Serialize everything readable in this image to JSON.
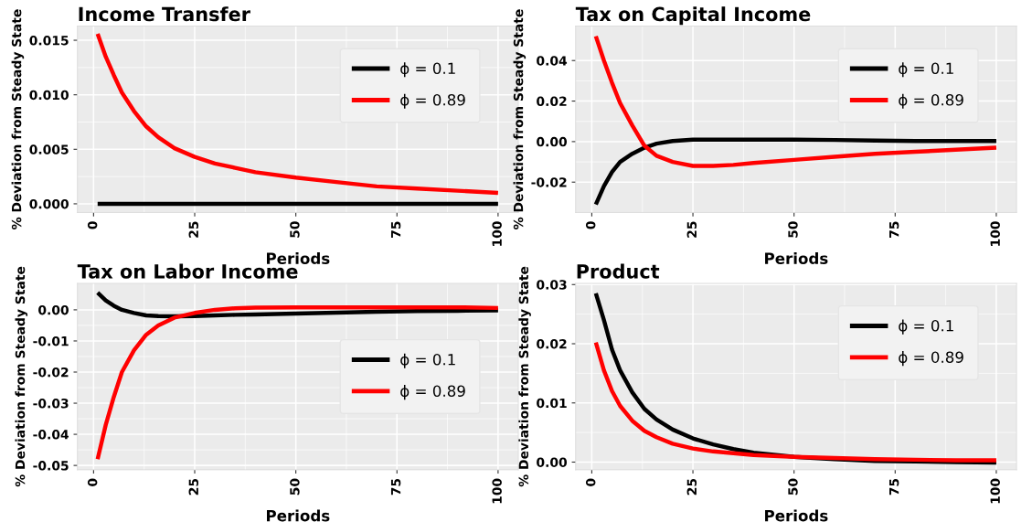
{
  "chart_data": [
    {
      "type": "line",
      "title": "Income Transfer",
      "xlabel": "Periods",
      "ylabel": "% Deviation from Steady State",
      "x": [
        1,
        3,
        5,
        7,
        10,
        13,
        16,
        20,
        25,
        30,
        35,
        40,
        50,
        60,
        70,
        80,
        90,
        100
      ],
      "xlim": [
        -4,
        105
      ],
      "xticks": [
        0,
        25,
        50,
        75,
        100
      ],
      "ylim": [
        -0.0008,
        0.0163
      ],
      "yticks": [
        {
          "value": 0,
          "label": "0.000"
        },
        {
          "value": 0.005,
          "label": "0.005"
        },
        {
          "value": 0.01,
          "label": "0.010"
        },
        {
          "value": 0.015,
          "label": "0.015"
        }
      ],
      "grid": true,
      "legend": "top right",
      "series": [
        {
          "name": "ϕ = 0.1",
          "color": "#000000",
          "values": [
            0,
            0,
            0,
            0,
            0,
            0,
            0,
            0,
            0,
            0,
            0,
            0,
            0,
            0,
            0,
            0,
            0,
            0
          ]
        },
        {
          "name": "ϕ = 0.89",
          "color": "#ff0000",
          "values": [
            0.0156,
            0.0135,
            0.0118,
            0.0102,
            0.0085,
            0.0071,
            0.0061,
            0.0051,
            0.0043,
            0.0037,
            0.0033,
            0.0029,
            0.0024,
            0.002,
            0.0016,
            0.0014,
            0.0012,
            0.001
          ]
        }
      ]
    },
    {
      "type": "line",
      "title": "Tax on Capital Income",
      "xlabel": "Periods",
      "ylabel": "% Deviation from Steady State",
      "x": [
        1,
        3,
        5,
        7,
        10,
        13,
        16,
        20,
        25,
        30,
        35,
        40,
        50,
        60,
        70,
        80,
        90,
        100
      ],
      "xlim": [
        -4,
        105
      ],
      "xticks": [
        0,
        25,
        50,
        75,
        100
      ],
      "ylim": [
        -0.035,
        0.057
      ],
      "yticks": [
        {
          "value": -0.02,
          "label": "-0.02"
        },
        {
          "value": 0,
          "label": "0.00"
        },
        {
          "value": 0.02,
          "label": "0.02"
        },
        {
          "value": 0.04,
          "label": "0.04"
        }
      ],
      "grid": true,
      "legend": "top right",
      "series": [
        {
          "name": "ϕ = 0.1",
          "color": "#000000",
          "values": [
            -0.031,
            -0.022,
            -0.015,
            -0.01,
            -0.006,
            -0.003,
            -0.001,
            0.0003,
            0.001,
            0.001,
            0.001,
            0.001,
            0.001,
            0.0008,
            0.0005,
            0.0003,
            0.0003,
            0.0003
          ]
        },
        {
          "name": "ϕ = 0.89",
          "color": "#ff0000",
          "values": [
            0.052,
            0.04,
            0.029,
            0.019,
            0.008,
            -0.002,
            -0.007,
            -0.01,
            -0.012,
            -0.012,
            -0.0115,
            -0.0105,
            -0.009,
            -0.0075,
            -0.006,
            -0.005,
            -0.004,
            -0.003
          ]
        }
      ]
    },
    {
      "type": "line",
      "title": "Tax on Labor Income",
      "xlabel": "Periods",
      "ylabel": "% Deviation from Steady State",
      "x": [
        1,
        3,
        5,
        7,
        10,
        13,
        16,
        20,
        25,
        30,
        35,
        40,
        50,
        60,
        70,
        80,
        90,
        100
      ],
      "xlim": [
        -4,
        105
      ],
      "xticks": [
        0,
        25,
        50,
        75,
        100
      ],
      "ylim": [
        -0.0514,
        0.0085
      ],
      "yticks": [
        {
          "value": -0.05,
          "label": "-0.05"
        },
        {
          "value": -0.04,
          "label": "-0.04"
        },
        {
          "value": -0.03,
          "label": "-0.03"
        },
        {
          "value": -0.02,
          "label": "-0.02"
        },
        {
          "value": -0.01,
          "label": "-0.01"
        },
        {
          "value": 0,
          "label": "0.00"
        }
      ],
      "grid": true,
      "legend": "center right",
      "series": [
        {
          "name": "ϕ = 0.1",
          "color": "#000000",
          "values": [
            0.0055,
            0.003,
            0.0013,
            0.0,
            -0.001,
            -0.0018,
            -0.002,
            -0.0021,
            -0.002,
            -0.0018,
            -0.0016,
            -0.0015,
            -0.0012,
            -0.0009,
            -0.0006,
            -0.0004,
            -0.0003,
            -0.0002
          ]
        },
        {
          "name": "ϕ = 0.89",
          "color": "#ff0000",
          "values": [
            -0.048,
            -0.037,
            -0.028,
            -0.02,
            -0.013,
            -0.008,
            -0.005,
            -0.0025,
            -0.001,
            0.0,
            0.0005,
            0.0007,
            0.0008,
            0.0008,
            0.0008,
            0.0008,
            0.0008,
            0.0006
          ]
        }
      ]
    },
    {
      "type": "line",
      "title": "Product",
      "xlabel": "Periods",
      "ylabel": "% Deviation from Steady State",
      "x": [
        1,
        3,
        5,
        7,
        10,
        13,
        16,
        20,
        25,
        30,
        35,
        40,
        50,
        60,
        70,
        80,
        90,
        100
      ],
      "xlim": [
        -4,
        105
      ],
      "xticks": [
        0,
        25,
        50,
        75,
        100
      ],
      "ylim": [
        -0.0013,
        0.0302
      ],
      "yticks": [
        {
          "value": 0,
          "label": "0.00"
        },
        {
          "value": 0.01,
          "label": "0.01"
        },
        {
          "value": 0.02,
          "label": "0.02"
        },
        {
          "value": 0.03,
          "label": "0.03"
        }
      ],
      "grid": true,
      "legend": "top right",
      "series": [
        {
          "name": "ϕ = 0.1",
          "color": "#000000",
          "values": [
            0.0285,
            0.024,
            0.019,
            0.0155,
            0.0118,
            0.009,
            0.0072,
            0.0055,
            0.004,
            0.003,
            0.0022,
            0.0016,
            0.0009,
            0.0005,
            0.0002,
            0.0001,
            0.0,
            -0.0001
          ]
        },
        {
          "name": "ϕ = 0.89",
          "color": "#ff0000",
          "values": [
            0.0202,
            0.0155,
            0.012,
            0.0095,
            0.007,
            0.0053,
            0.0042,
            0.0031,
            0.0023,
            0.0018,
            0.0015,
            0.0012,
            0.0009,
            0.0007,
            0.0005,
            0.0004,
            0.0003,
            0.0003
          ]
        }
      ]
    }
  ]
}
